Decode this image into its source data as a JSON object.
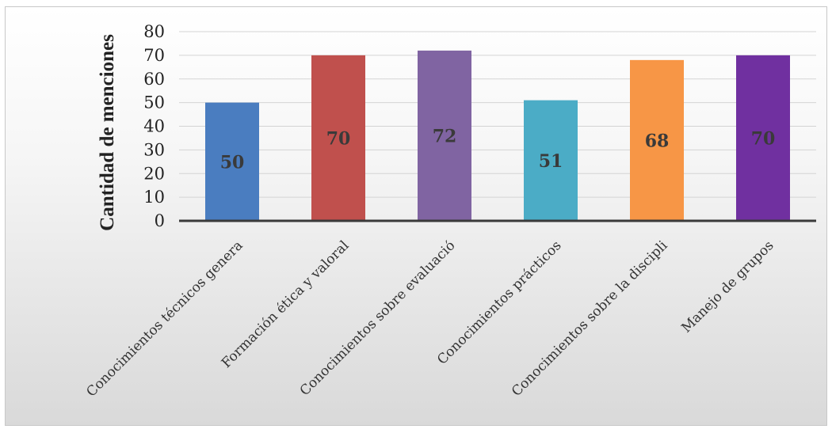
{
  "chart_data": {
    "type": "bar",
    "ylabel": "Cantidad de menciones",
    "xlabel": "",
    "ylim": [
      0,
      80
    ],
    "yticks": [
      0,
      10,
      20,
      30,
      40,
      50,
      60,
      70,
      80
    ],
    "grid": true,
    "legend": "none",
    "categories": [
      "Conocimientos técnicos genera",
      "Formación ética y valoral",
      "Conocimientos sobre evaluació",
      "Conocimientos prácticos",
      "Conocimientos sobre la discipli",
      "Manejo de grupos"
    ],
    "values": [
      50,
      70,
      72,
      51,
      68,
      70
    ],
    "data_labels": [
      "50",
      "70",
      "72",
      "51",
      "68",
      "70"
    ],
    "colors": [
      "#4a7dc0",
      "#c0504d",
      "#8064a2",
      "#4bacc6",
      "#f79646",
      "#7030a0"
    ]
  }
}
